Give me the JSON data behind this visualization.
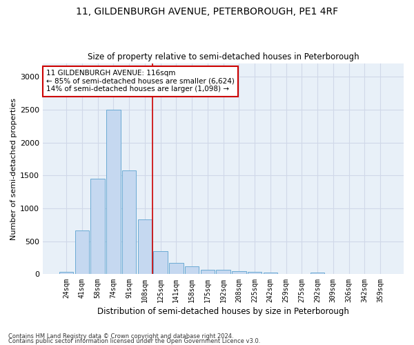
{
  "title1": "11, GILDENBURGH AVENUE, PETERBOROUGH, PE1 4RF",
  "title2": "Size of property relative to semi-detached houses in Peterborough",
  "xlabel": "Distribution of semi-detached houses by size in Peterborough",
  "ylabel": "Number of semi-detached properties",
  "categories": [
    "24sqm",
    "41sqm",
    "58sqm",
    "74sqm",
    "91sqm",
    "108sqm",
    "125sqm",
    "141sqm",
    "158sqm",
    "175sqm",
    "192sqm",
    "208sqm",
    "225sqm",
    "242sqm",
    "259sqm",
    "275sqm",
    "292sqm",
    "309sqm",
    "326sqm",
    "342sqm",
    "359sqm"
  ],
  "values": [
    40,
    660,
    1450,
    2500,
    1580,
    830,
    350,
    175,
    125,
    65,
    65,
    45,
    35,
    25,
    0,
    0,
    25,
    0,
    0,
    0,
    0
  ],
  "bar_color": "#c5d8f0",
  "bar_edge_color": "#6aaad4",
  "annotation_text": "11 GILDENBURGH AVENUE: 116sqm\n← 85% of semi-detached houses are smaller (6,624)\n14% of semi-detached houses are larger (1,098) →",
  "annotation_box_color": "#ffffff",
  "annotation_box_edge": "#cc0000",
  "vline_color": "#cc0000",
  "vline_x": 5.5,
  "ylim": [
    0,
    3200
  ],
  "yticks": [
    0,
    500,
    1000,
    1500,
    2000,
    2500,
    3000
  ],
  "grid_color": "#d0d8e8",
  "bg_color": "#e8f0f8",
  "footer1": "Contains HM Land Registry data © Crown copyright and database right 2024.",
  "footer2": "Contains public sector information licensed under the Open Government Licence v3.0."
}
